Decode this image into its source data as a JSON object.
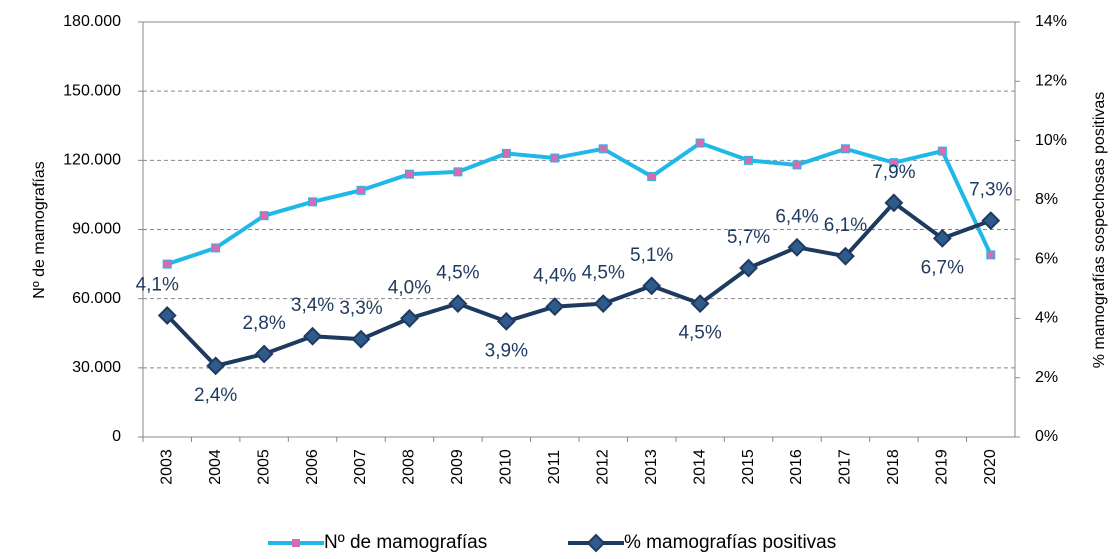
{
  "chart_data": {
    "type": "line",
    "y_label": "Nº de mamografías",
    "y2_label": "% mamografías sospechosas positivas",
    "categories": [
      "2003",
      "2004",
      "2005",
      "2006",
      "2007",
      "2008",
      "2009",
      "2010",
      "2011",
      "2012",
      "2013",
      "2014",
      "2015",
      "2016",
      "2017",
      "2018",
      "2019",
      "2020"
    ],
    "ylim": [
      0,
      180000
    ],
    "yticks": [
      0,
      {
        "value": 30000,
        "label": "30.000"
      },
      {
        "value": 60000,
        "label": "60.000"
      },
      {
        "value": 90000,
        "label": "90.000"
      },
      {
        "value": 120000,
        "label": "120.000"
      },
      {
        "value": 150000,
        "label": "150.000"
      },
      {
        "value": 180000,
        "label": "180.000"
      }
    ],
    "y2lim": [
      0,
      14
    ],
    "y2ticks": [
      {
        "value": 0,
        "label": "0%"
      },
      {
        "value": 2,
        "label": "2%"
      },
      {
        "value": 4,
        "label": "4%"
      },
      {
        "value": 6,
        "label": "6%"
      },
      {
        "value": 8,
        "label": "8%"
      },
      {
        "value": 10,
        "label": "10%"
      },
      {
        "value": 12,
        "label": "12%"
      },
      {
        "value": 14,
        "label": "14%"
      }
    ],
    "grid": true,
    "series": [
      {
        "name": "Nº de mamografías",
        "color": "#1fb8e8",
        "marker_color": "#d86ab0",
        "values": [
          75000,
          82000,
          96000,
          102000,
          107000,
          114000,
          115000,
          123000,
          121000,
          125000,
          113000,
          127500,
          120000,
          118000,
          125000,
          119000,
          124000,
          79000
        ]
      },
      {
        "name": "% mamografías positivas",
        "color": "#1f3a5f",
        "marker_color": "#2f5a8c",
        "axis": "y2",
        "values": [
          4.1,
          2.4,
          2.8,
          3.4,
          3.3,
          4.0,
          4.5,
          3.9,
          4.4,
          4.5,
          5.1,
          4.5,
          5.7,
          6.4,
          6.1,
          7.9,
          6.7,
          7.3
        ],
        "value_labels": [
          "4,1%",
          "2,4%",
          "2,8%",
          "3,4%",
          "3,3%",
          "4,0%",
          "4,5%",
          "3,9%",
          "4,4%",
          "4,5%",
          "5,1%",
          "4,5%",
          "5,7%",
          "6,4%",
          "6,1%",
          "7,9%",
          "6,7%",
          "7,3%"
        ]
      }
    ]
  }
}
